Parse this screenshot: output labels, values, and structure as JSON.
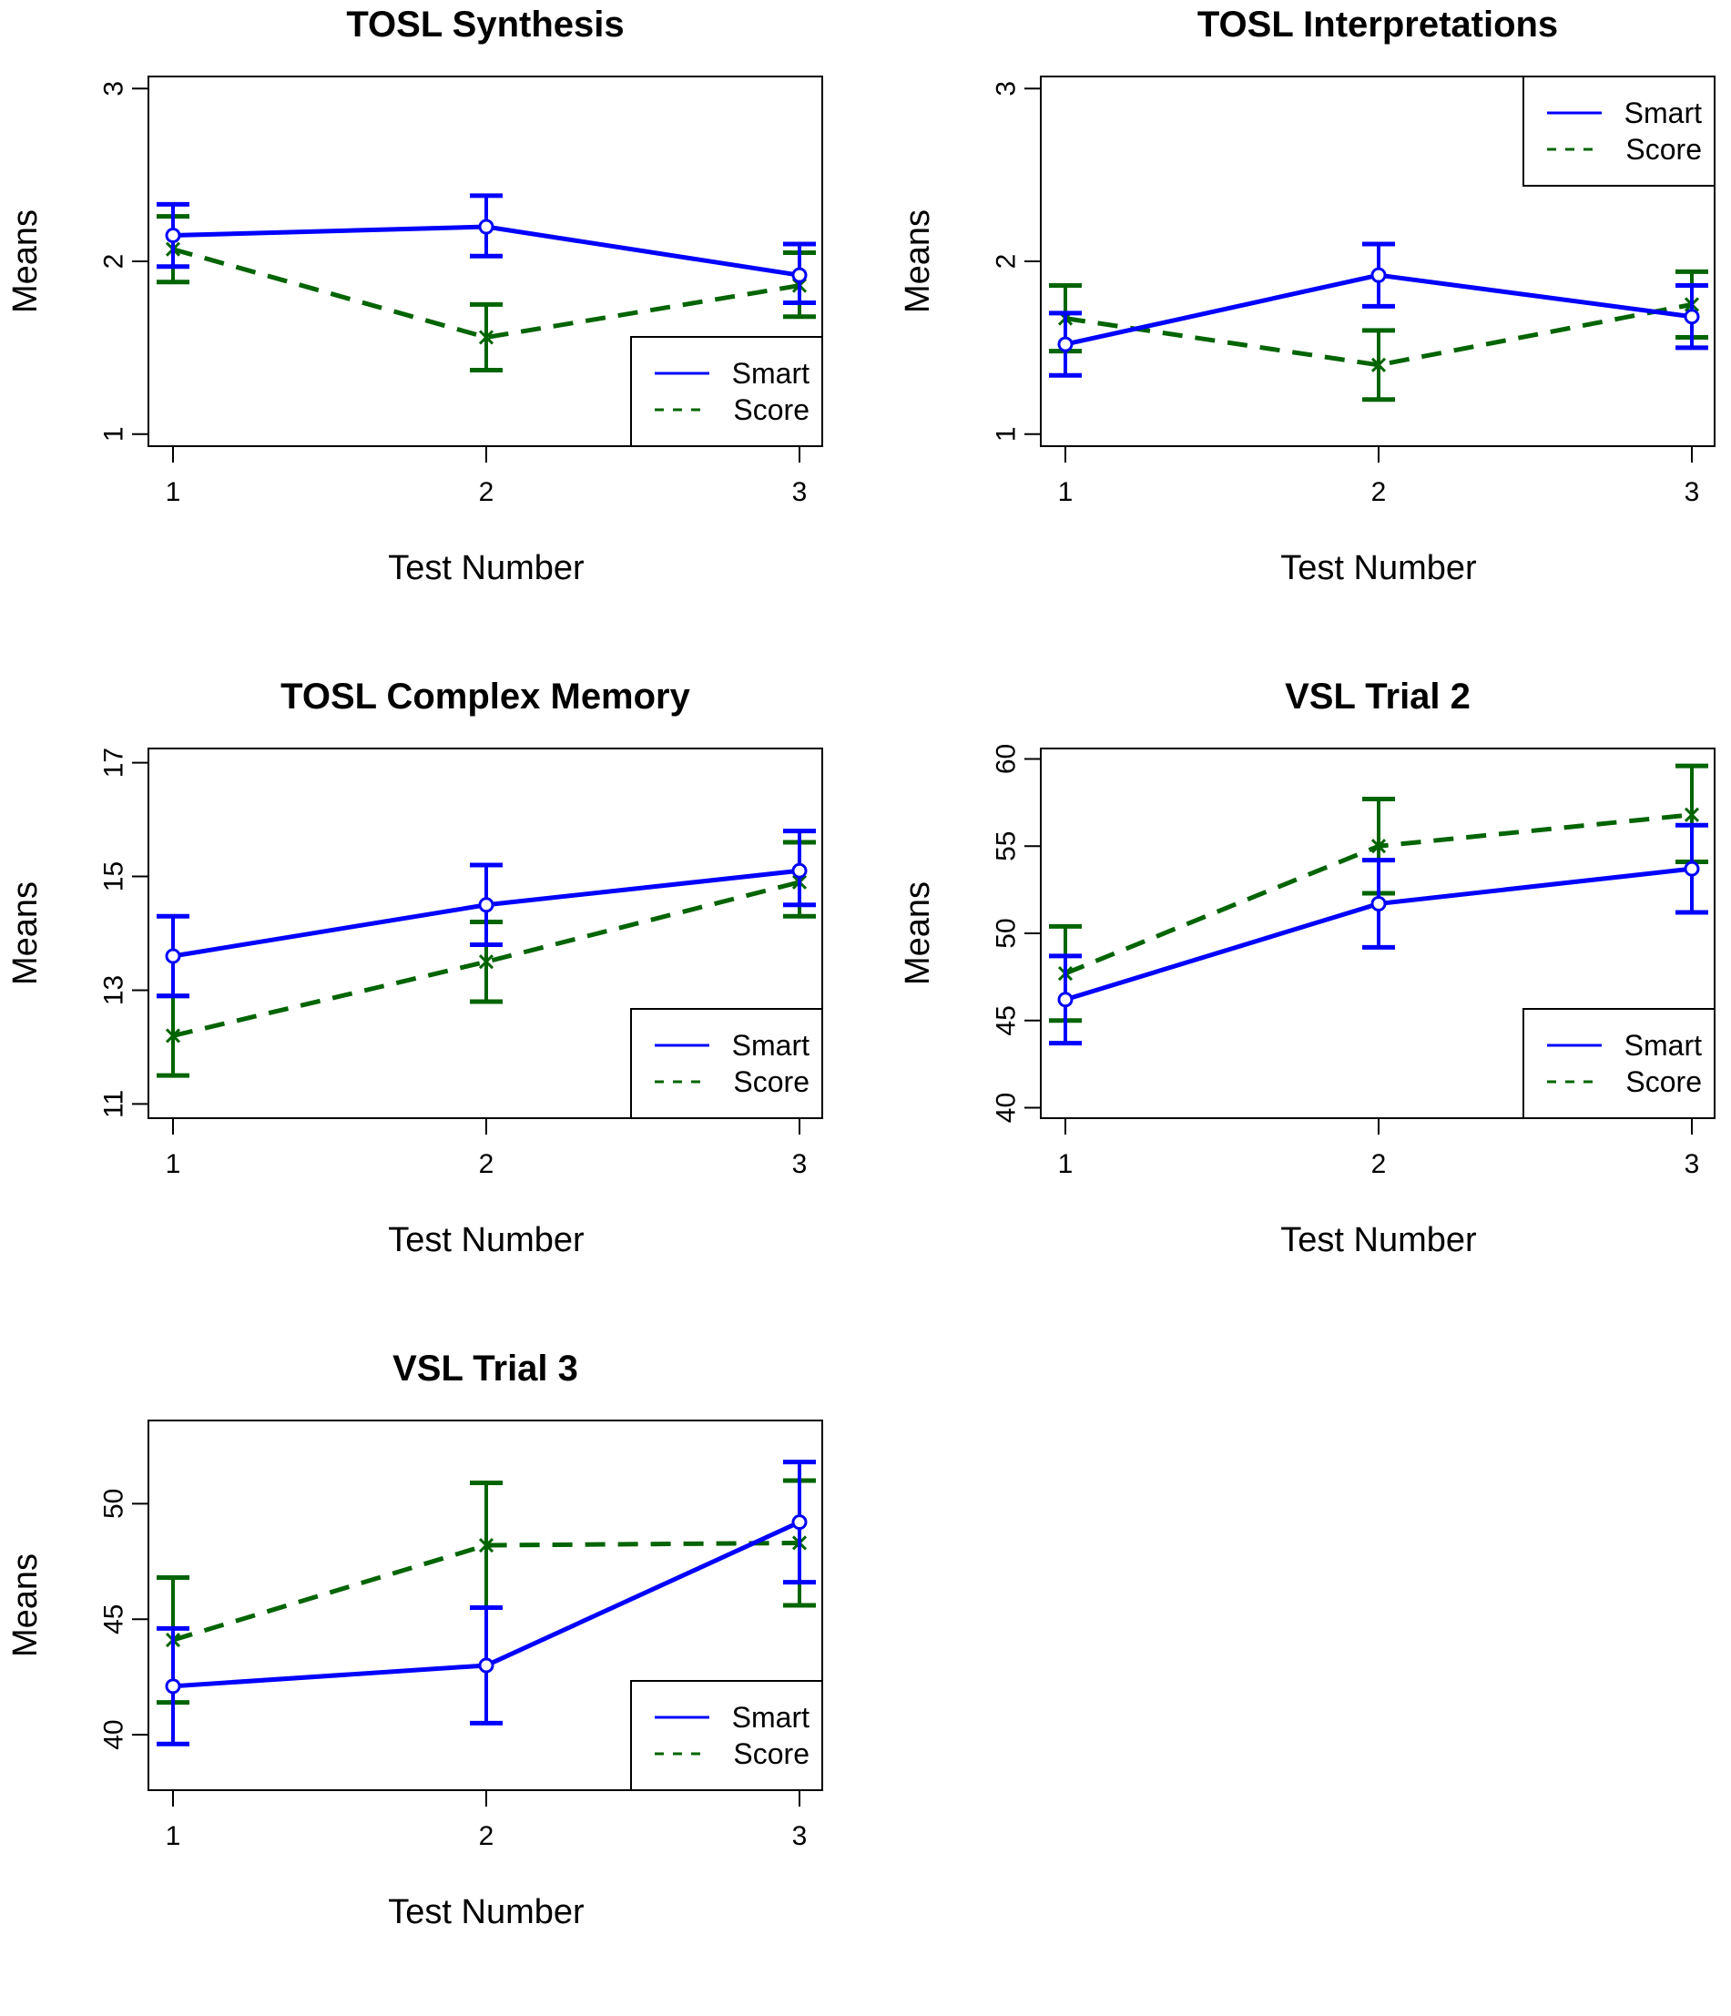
{
  "colors": {
    "smart": "#0000ff",
    "score": "#006400",
    "axis": "#000000"
  },
  "chart_data": [
    {
      "type": "line",
      "title": "TOSL Synthesis",
      "xlabel": "Test Number",
      "ylabel": "Means",
      "x": [
        1,
        2,
        3
      ],
      "xticks": [
        "1",
        "2",
        "3"
      ],
      "yticks": [
        1,
        2,
        3
      ],
      "ylim": [
        0.93,
        3.07
      ],
      "legend": {
        "position": "bottom-right",
        "entries": [
          "Smart",
          "Score"
        ]
      },
      "series": [
        {
          "name": "Smart",
          "style": "solid",
          "marker": "circle",
          "values": [
            2.15,
            2.2,
            1.92
          ],
          "lower": [
            1.97,
            2.03,
            1.76
          ],
          "upper": [
            2.33,
            2.38,
            2.1
          ]
        },
        {
          "name": "Score",
          "style": "dashed",
          "marker": "x",
          "values": [
            2.07,
            1.56,
            1.86
          ],
          "lower": [
            1.88,
            1.37,
            1.68
          ],
          "upper": [
            2.26,
            1.75,
            2.05
          ]
        }
      ]
    },
    {
      "type": "line",
      "title": "TOSL Interpretations",
      "xlabel": "Test Number",
      "ylabel": "Means",
      "x": [
        1,
        2,
        3
      ],
      "xticks": [
        "1",
        "2",
        "3"
      ],
      "yticks": [
        1,
        2,
        3
      ],
      "ylim": [
        0.93,
        3.07
      ],
      "legend": {
        "position": "top-right",
        "entries": [
          "Smart",
          "Score"
        ]
      },
      "series": [
        {
          "name": "Smart",
          "style": "solid",
          "marker": "circle",
          "values": [
            1.52,
            1.92,
            1.68
          ],
          "lower": [
            1.34,
            1.74,
            1.5
          ],
          "upper": [
            1.7,
            2.1,
            1.86
          ]
        },
        {
          "name": "Score",
          "style": "dashed",
          "marker": "x",
          "values": [
            1.67,
            1.4,
            1.75
          ],
          "lower": [
            1.48,
            1.2,
            1.56
          ],
          "upper": [
            1.86,
            1.6,
            1.94
          ]
        }
      ]
    },
    {
      "type": "line",
      "title": "TOSL Complex Memory",
      "xlabel": "Test Number",
      "ylabel": "Means",
      "x": [
        1,
        2,
        3
      ],
      "xticks": [
        "1",
        "2",
        "3"
      ],
      "yticks": [
        11,
        13,
        15,
        17
      ],
      "ylim": [
        10.75,
        17.25
      ],
      "legend": {
        "position": "bottom-right",
        "entries": [
          "Smart",
          "Score"
        ]
      },
      "series": [
        {
          "name": "Smart",
          "style": "solid",
          "marker": "circle",
          "values": [
            13.6,
            14.5,
            15.1
          ],
          "lower": [
            12.9,
            13.8,
            14.5
          ],
          "upper": [
            14.3,
            15.2,
            15.8
          ]
        },
        {
          "name": "Score",
          "style": "dashed",
          "marker": "x",
          "values": [
            12.2,
            13.5,
            14.9
          ],
          "lower": [
            11.5,
            12.8,
            14.3
          ],
          "upper": [
            12.9,
            14.2,
            15.6
          ]
        }
      ]
    },
    {
      "type": "line",
      "title": "VSL Trial 2",
      "xlabel": "Test Number",
      "ylabel": "Means",
      "x": [
        1,
        2,
        3
      ],
      "xticks": [
        "1",
        "2",
        "3"
      ],
      "yticks": [
        40,
        45,
        50,
        55,
        60
      ],
      "ylim": [
        39.4,
        60.6
      ],
      "legend": {
        "position": "bottom-right",
        "entries": [
          "Smart",
          "Score"
        ]
      },
      "series": [
        {
          "name": "Smart",
          "style": "solid",
          "marker": "circle",
          "values": [
            46.2,
            51.7,
            53.7
          ],
          "lower": [
            43.7,
            49.2,
            51.2
          ],
          "upper": [
            48.7,
            54.2,
            56.2
          ]
        },
        {
          "name": "Score",
          "style": "dashed",
          "marker": "x",
          "values": [
            47.7,
            55.0,
            56.8
          ],
          "lower": [
            45.0,
            52.3,
            54.1
          ],
          "upper": [
            50.4,
            57.7,
            59.6
          ]
        }
      ]
    },
    {
      "type": "line",
      "title": "VSL Trial 3",
      "xlabel": "Test Number",
      "ylabel": "Means",
      "x": [
        1,
        2,
        3
      ],
      "xticks": [
        "1",
        "2",
        "3"
      ],
      "yticks": [
        40,
        45,
        50
      ],
      "ylim": [
        37.6,
        53.6
      ],
      "legend": {
        "position": "bottom-right",
        "entries": [
          "Smart",
          "Score"
        ]
      },
      "series": [
        {
          "name": "Smart",
          "style": "solid",
          "marker": "circle",
          "values": [
            42.1,
            43.0,
            49.2
          ],
          "lower": [
            39.6,
            40.5,
            46.6
          ],
          "upper": [
            44.6,
            45.5,
            51.8
          ]
        },
        {
          "name": "Score",
          "style": "dashed",
          "marker": "x",
          "values": [
            44.1,
            48.2,
            48.3
          ],
          "lower": [
            41.4,
            45.5,
            45.6
          ],
          "upper": [
            46.8,
            50.9,
            51.0
          ]
        }
      ]
    }
  ]
}
